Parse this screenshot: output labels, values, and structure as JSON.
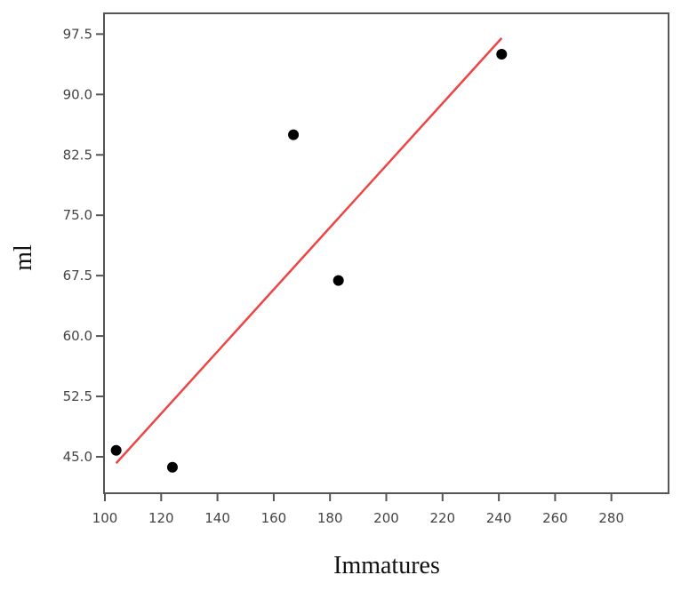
{
  "chart_data": {
    "type": "scatter",
    "title": "",
    "xlabel": "Immatures",
    "ylabel": "ml",
    "xlim": [
      100,
      300
    ],
    "ylim": [
      40.4,
      99.6
    ],
    "x_ticks": [
      100,
      120,
      140,
      160,
      180,
      200,
      220,
      240,
      260,
      280
    ],
    "y_ticks": [
      "45.0",
      "52.5",
      "60.0",
      "67.5",
      "75.0",
      "82.5",
      "90.0",
      "97.5"
    ],
    "grid": false,
    "legend": null,
    "series": [
      {
        "name": "observations",
        "type": "scatter",
        "color": "#000000",
        "points": [
          {
            "x": 104,
            "y": 45.8
          },
          {
            "x": 124,
            "y": 43.7
          },
          {
            "x": 167,
            "y": 85.0
          },
          {
            "x": 183,
            "y": 66.9
          },
          {
            "x": 241,
            "y": 95.0
          }
        ]
      },
      {
        "name": "fit line",
        "type": "line",
        "color": "#EE4444",
        "points": [
          {
            "x": 104,
            "y": 44.2
          },
          {
            "x": 241,
            "y": 97.0
          }
        ]
      }
    ]
  },
  "labels": {
    "x_axis": "Immatures",
    "y_axis": "ml"
  }
}
